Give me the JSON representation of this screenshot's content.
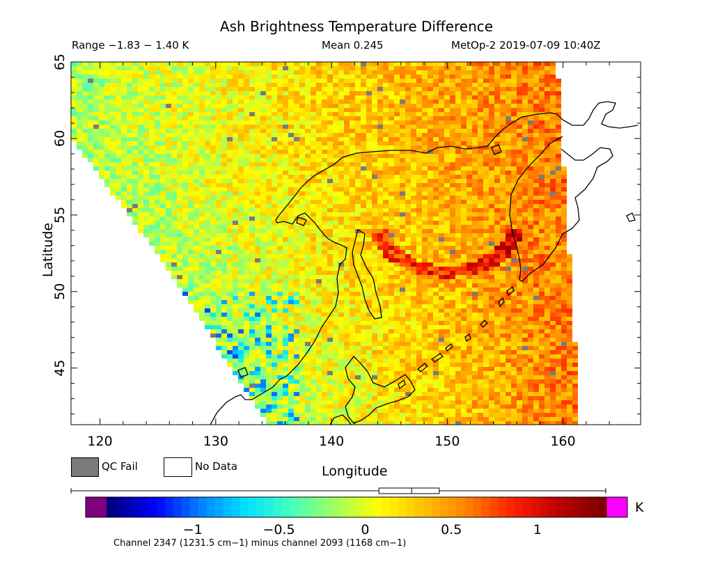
{
  "header": {
    "title": "Ash Brightness Temperature Difference",
    "range": "Range −1.83 − 1.40 K",
    "mean": "Mean 0.245",
    "satellite_time": "MetOp-2 2019-07-09 10:40Z"
  },
  "map": {
    "xlabel": "Longitude",
    "ylabel": "Latitude",
    "lon_range": [
      117.5,
      166.7
    ],
    "lat_range": [
      41.3,
      65
    ],
    "lon_ticks": [
      "120",
      "130",
      "140",
      "150",
      "160"
    ],
    "lat_ticks": [
      "45",
      "50",
      "55",
      "60",
      "65"
    ],
    "swath_note": "satellite swath covers western boundary curving from (117.5,60) to (134.5,41.3); eastern boundary from (159.5,65) to (161.5,41.3)"
  },
  "legend": {
    "qc_fail": "QC Fail",
    "no_data": "No Data",
    "qc_fail_color": "#7b7b7b",
    "no_data_color": "#ffffff"
  },
  "colorbar": {
    "unit": "K",
    "min": -1.5,
    "max": 1.4,
    "ticks": [
      "−1",
      "−0.5",
      "0",
      "0.5",
      "1"
    ],
    "tick_values": [
      -1,
      -0.5,
      0,
      0.5,
      1
    ],
    "below_color": "#7d007d",
    "above_color": "#ff00ff",
    "colors": [
      "#00007f",
      "#0000ff",
      "#0080ff",
      "#00e0ff",
      "#40ffc0",
      "#a0ff60",
      "#ffff00",
      "#ffc000",
      "#ff8000",
      "#ff2000",
      "#c00000",
      "#7f0000"
    ],
    "box_range": [
      0.08,
      0.43
    ],
    "box_median": 0.27,
    "note": "Channel 2347 (1231.5 cm−1) minus channel 2093 (1168 cm−1)"
  }
}
